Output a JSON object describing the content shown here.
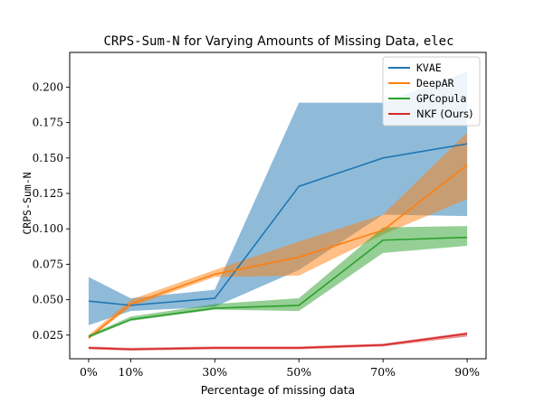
{
  "chart_data": {
    "type": "line",
    "title_mono": "CRPS-Sum-N",
    "title_mid": " for Varying Amounts of Missing Data, ",
    "title_tail": "elec",
    "xlabel": "Percentage of missing data",
    "ylabel": "CRPS-Sum-N",
    "categories": [
      "0%",
      "10%",
      "30%",
      "50%",
      "70%",
      "90%"
    ],
    "x": [
      0,
      10,
      30,
      50,
      70,
      90
    ],
    "xlim": [
      -4.5,
      94.5
    ],
    "ylim": [
      0.0083,
      0.2245
    ],
    "yticks": [
      0.025,
      0.05,
      0.075,
      0.1,
      0.125,
      0.15,
      0.175,
      0.2
    ],
    "ytick_labels": [
      "0.025",
      "0.050",
      "0.075",
      "0.100",
      "0.125",
      "0.150",
      "0.175",
      "0.200"
    ],
    "legend_position": "top-right",
    "grid": false,
    "series": [
      {
        "name": "KVAE",
        "color": "#1f77b4",
        "values": [
          0.049,
          0.046,
          0.051,
          0.13,
          0.15,
          0.16
        ],
        "lower": [
          0.032,
          0.042,
          0.045,
          0.071,
          0.11,
          0.109
        ],
        "upper": [
          0.066,
          0.051,
          0.057,
          0.189,
          0.189,
          0.211
        ]
      },
      {
        "name": "DeepAR",
        "color": "#ff7f0e",
        "values": [
          0.023,
          0.047,
          0.068,
          0.08,
          0.099,
          0.145
        ],
        "lower": [
          0.022,
          0.045,
          0.066,
          0.067,
          0.096,
          0.121
        ],
        "upper": [
          0.025,
          0.05,
          0.071,
          0.091,
          0.11,
          0.168
        ]
      },
      {
        "name": "GPCopula",
        "color": "#2ca02c",
        "values": [
          0.024,
          0.036,
          0.044,
          0.046,
          0.092,
          0.094
        ],
        "lower": [
          0.023,
          0.035,
          0.043,
          0.042,
          0.083,
          0.088
        ],
        "upper": [
          0.025,
          0.038,
          0.047,
          0.051,
          0.101,
          0.102
        ]
      },
      {
        "name": "NKF (Ours)",
        "color": "#d62728",
        "values": [
          0.016,
          0.015,
          0.016,
          0.016,
          0.018,
          0.026
        ],
        "lower": [
          0.015,
          0.014,
          0.015,
          0.015,
          0.017,
          0.024
        ],
        "upper": [
          0.017,
          0.016,
          0.017,
          0.017,
          0.019,
          0.027
        ]
      }
    ]
  }
}
